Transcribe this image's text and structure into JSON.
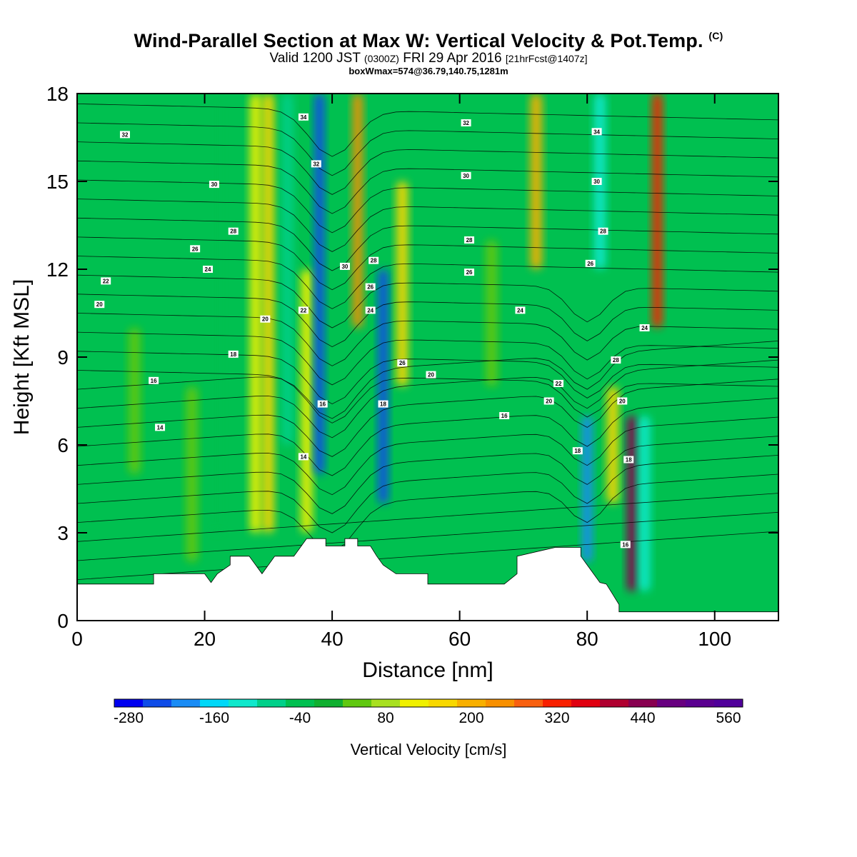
{
  "title": {
    "main": "Wind-Parallel Section at Max W: Vertical Velocity & Pot.Temp.",
    "main_suffix": "(C)",
    "valid_prefix": "Valid 1200 JST",
    "valid_utc": "(0300Z)",
    "valid_date": "FRI 29 Apr 2016",
    "valid_fcst": "[21hrFcst@1407z]",
    "box": "boxWmax=574@36.79,140.75,1281m"
  },
  "chart_data": {
    "type": "heatmap",
    "xlabel": "Distance [nm]",
    "ylabel": "Height [Kft MSL]",
    "xlim": [
      0,
      110
    ],
    "ylim": [
      0,
      18
    ],
    "x_ticks": [
      0,
      20,
      40,
      60,
      80,
      100
    ],
    "y_ticks": [
      0,
      3,
      6,
      9,
      12,
      15,
      18
    ],
    "background_value_cm_s": -10,
    "colorbar": {
      "title": "Vertical Velocity [cm/s]",
      "tick_labels": [
        "-280",
        "-160",
        "-40",
        "80",
        "200",
        "320",
        "440",
        "560"
      ],
      "min": -300,
      "max": 580,
      "step": 40,
      "colors": [
        "#0000f0",
        "#0f4ce8",
        "#1a8cf5",
        "#00d8f8",
        "#10e8cc",
        "#00d089",
        "#00c050",
        "#10b030",
        "#60c810",
        "#a8e020",
        "#f0f000",
        "#f8d800",
        "#f8b000",
        "#f89000",
        "#f86010",
        "#f82000",
        "#e00010",
        "#b00030",
        "#880050",
        "#680080",
        "#5a0090",
        "#50009a"
      ]
    },
    "velocity_features": [
      {
        "x": 9,
        "height_range": [
          5,
          10
        ],
        "value_cm_s": 20
      },
      {
        "x": 18,
        "height_range": [
          2,
          8
        ],
        "value_cm_s": 20
      },
      {
        "x": 22,
        "height_range": [
          3,
          18
        ],
        "value_cm_s": -60
      },
      {
        "x": 28,
        "height_range": [
          3,
          18
        ],
        "value_cm_s": 120
      },
      {
        "x": 30,
        "height_range": [
          3,
          18
        ],
        "value_cm_s": 160
      },
      {
        "x": 33,
        "height_range": [
          6,
          18
        ],
        "value_cm_s": -100
      },
      {
        "x": 36,
        "height_range": [
          3,
          12
        ],
        "value_cm_s": 120
      },
      {
        "x": 38,
        "height_range": [
          5,
          18
        ],
        "value_cm_s": -240
      },
      {
        "x": 44,
        "height_range": [
          10,
          18
        ],
        "value_cm_s": 240
      },
      {
        "x": 48,
        "height_range": [
          4,
          12
        ],
        "value_cm_s": -260
      },
      {
        "x": 51,
        "height_range": [
          8,
          15
        ],
        "value_cm_s": 160
      },
      {
        "x": 65,
        "height_range": [
          8,
          13
        ],
        "value_cm_s": 20
      },
      {
        "x": 72,
        "height_range": [
          12,
          18
        ],
        "value_cm_s": 200
      },
      {
        "x": 80,
        "height_range": [
          2,
          7
        ],
        "value_cm_s": -220
      },
      {
        "x": 82,
        "height_range": [
          12,
          18
        ],
        "value_cm_s": -120
      },
      {
        "x": 84,
        "height_range": [
          4,
          8
        ],
        "value_cm_s": 160
      },
      {
        "x": 87,
        "height_range": [
          1,
          7
        ],
        "value_cm_s": 420
      },
      {
        "x": 89,
        "height_range": [
          1,
          7
        ],
        "value_cm_s": -120
      },
      {
        "x": 91,
        "height_range": [
          10,
          18
        ],
        "value_cm_s": 320
      }
    ],
    "terrain": [
      {
        "x": 0,
        "height": 1.25
      },
      {
        "x": 12,
        "height": 1.25
      },
      {
        "x": 12,
        "height": 1.6
      },
      {
        "x": 20,
        "height": 1.6
      },
      {
        "x": 21,
        "height": 1.3
      },
      {
        "x": 22,
        "height": 1.6
      },
      {
        "x": 24,
        "height": 1.9
      },
      {
        "x": 24,
        "height": 2.2
      },
      {
        "x": 27,
        "height": 2.2
      },
      {
        "x": 28,
        "height": 1.9
      },
      {
        "x": 29,
        "height": 1.6
      },
      {
        "x": 30,
        "height": 1.9
      },
      {
        "x": 31,
        "height": 2.2
      },
      {
        "x": 34,
        "height": 2.2
      },
      {
        "x": 35,
        "height": 2.5
      },
      {
        "x": 36,
        "height": 2.8
      },
      {
        "x": 39,
        "height": 2.8
      },
      {
        "x": 39,
        "height": 2.55
      },
      {
        "x": 42,
        "height": 2.55
      },
      {
        "x": 42,
        "height": 2.8
      },
      {
        "x": 44,
        "height": 2.8
      },
      {
        "x": 44,
        "height": 2.55
      },
      {
        "x": 46,
        "height": 2.55
      },
      {
        "x": 47,
        "height": 2.2
      },
      {
        "x": 48,
        "height": 1.9
      },
      {
        "x": 50,
        "height": 1.6
      },
      {
        "x": 55,
        "height": 1.6
      },
      {
        "x": 55,
        "height": 1.25
      },
      {
        "x": 67,
        "height": 1.25
      },
      {
        "x": 69,
        "height": 1.6
      },
      {
        "x": 69,
        "height": 2.2
      },
      {
        "x": 75,
        "height": 2.5
      },
      {
        "x": 79,
        "height": 2.5
      },
      {
        "x": 79,
        "height": 2.2
      },
      {
        "x": 80,
        "height": 1.9
      },
      {
        "x": 81,
        "height": 1.6
      },
      {
        "x": 82,
        "height": 1.3
      },
      {
        "x": 83,
        "height": 1.25
      },
      {
        "x": 84,
        "height": 0.9
      },
      {
        "x": 85,
        "height": 0.55
      },
      {
        "x": 85,
        "height": 0.3
      },
      {
        "x": 110,
        "height": 0.3
      }
    ],
    "contour_labels": [
      {
        "text": "32",
        "x": 7.5,
        "y": 16.6
      },
      {
        "text": "34",
        "x": 35.5,
        "y": 17.2
      },
      {
        "text": "32",
        "x": 37.5,
        "y": 15.6
      },
      {
        "text": "30",
        "x": 21.5,
        "y": 14.9
      },
      {
        "text": "28",
        "x": 24.5,
        "y": 13.3
      },
      {
        "text": "26",
        "x": 18.5,
        "y": 12.7
      },
      {
        "text": "24",
        "x": 20.5,
        "y": 12.0
      },
      {
        "text": "22",
        "x": 4.5,
        "y": 11.6
      },
      {
        "text": "20",
        "x": 3.5,
        "y": 10.8
      },
      {
        "text": "20",
        "x": 29.5,
        "y": 10.3
      },
      {
        "text": "22",
        "x": 35.5,
        "y": 10.6
      },
      {
        "text": "30",
        "x": 42.0,
        "y": 12.1
      },
      {
        "text": "28",
        "x": 46.5,
        "y": 12.3
      },
      {
        "text": "26",
        "x": 46.0,
        "y": 11.4
      },
      {
        "text": "24",
        "x": 46.0,
        "y": 10.6
      },
      {
        "text": "18",
        "x": 24.5,
        "y": 9.1
      },
      {
        "text": "16",
        "x": 12.0,
        "y": 8.2
      },
      {
        "text": "14",
        "x": 13.0,
        "y": 6.6
      },
      {
        "text": "16",
        "x": 38.5,
        "y": 7.4
      },
      {
        "text": "18",
        "x": 48.0,
        "y": 7.4
      },
      {
        "text": "26",
        "x": 51.0,
        "y": 8.8
      },
      {
        "text": "20",
        "x": 55.5,
        "y": 8.4
      },
      {
        "text": "14",
        "x": 35.5,
        "y": 5.6
      },
      {
        "text": "32",
        "x": 61.0,
        "y": 17.0
      },
      {
        "text": "30",
        "x": 61.0,
        "y": 15.2
      },
      {
        "text": "28",
        "x": 61.5,
        "y": 13.0
      },
      {
        "text": "26",
        "x": 61.5,
        "y": 11.9
      },
      {
        "text": "24",
        "x": 69.5,
        "y": 10.6
      },
      {
        "text": "16",
        "x": 67.0,
        "y": 7.0
      },
      {
        "text": "34",
        "x": 81.5,
        "y": 16.7
      },
      {
        "text": "30",
        "x": 81.5,
        "y": 15.0
      },
      {
        "text": "28",
        "x": 82.5,
        "y": 13.3
      },
      {
        "text": "26",
        "x": 80.5,
        "y": 12.2
      },
      {
        "text": "24",
        "x": 89.0,
        "y": 10.0
      },
      {
        "text": "28",
        "x": 84.5,
        "y": 8.9
      },
      {
        "text": "22",
        "x": 75.5,
        "y": 8.1
      },
      {
        "text": "20",
        "x": 74.0,
        "y": 7.5
      },
      {
        "text": "20",
        "x": 85.5,
        "y": 7.5
      },
      {
        "text": "18",
        "x": 78.5,
        "y": 5.8
      },
      {
        "text": "18",
        "x": 86.5,
        "y": 5.5
      },
      {
        "text": "16",
        "x": 86.0,
        "y": 2.6
      }
    ]
  }
}
